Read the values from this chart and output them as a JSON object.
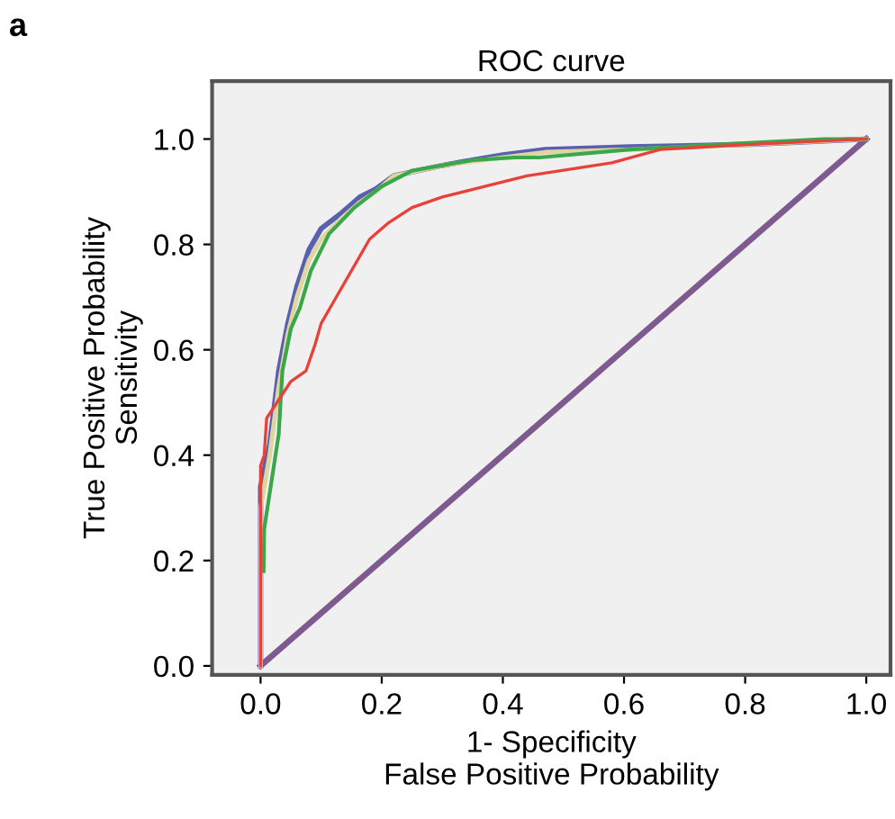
{
  "chart_data": {
    "type": "line",
    "title": "ROC curve",
    "xlabel": "1- Specificity\nFalse Positive Probability",
    "ylabel": "True Positive Probability\nSensitivity",
    "annotations": [
      "a"
    ],
    "xlim": [
      -0.08,
      1.04
    ],
    "ylim": [
      -0.017,
      1.11
    ],
    "xticks": [
      {
        "value": 0,
        "label": "0.0"
      },
      {
        "value": 0.2,
        "label": "0.2"
      },
      {
        "value": 0.4,
        "label": "0.4"
      },
      {
        "value": 0.6,
        "label": "0.6"
      },
      {
        "value": 0.8,
        "label": "0.8"
      },
      {
        "value": 1,
        "label": "1.0"
      }
    ],
    "yticks": [
      {
        "value": 0,
        "label": "0.0"
      },
      {
        "value": 0.2,
        "label": "0.2"
      },
      {
        "value": 0.4,
        "label": "0.4"
      },
      {
        "value": 0.6,
        "label": "0.6"
      },
      {
        "value": 0.8,
        "label": "0.8"
      },
      {
        "value": 1,
        "label": "1.0"
      }
    ],
    "grid": false,
    "marker": "none",
    "line_style": "solid",
    "series": [
      {
        "color": "#7e5a8e",
        "x": [
          0,
          1
        ],
        "values": [
          0,
          1
        ]
      },
      {
        "color": "#5a5fb0",
        "x": [
          0,
          0,
          0.015,
          0.03,
          0.045,
          0.06,
          0.08,
          0.1,
          0.134,
          0.164,
          0.19,
          0.22,
          0.3,
          0.4,
          0.47,
          0.61,
          0.81,
          1
        ],
        "values": [
          0,
          0.34,
          0.42,
          0.56,
          0.65,
          0.72,
          0.79,
          0.83,
          0.86,
          0.89,
          0.905,
          0.93,
          0.95,
          0.97,
          0.98,
          0.985,
          0.99,
          1
        ]
      },
      {
        "color": "#ddd6a0",
        "x": [
          0,
          0,
          0.015,
          0.03,
          0.045,
          0.06,
          0.08,
          0.1,
          0.134,
          0.164,
          0.19,
          0.22,
          0.3,
          0.4,
          0.47,
          0.61,
          0.81,
          1
        ],
        "values": [
          0,
          0.3,
          0.4,
          0.53,
          0.63,
          0.7,
          0.77,
          0.81,
          0.85,
          0.88,
          0.9,
          0.93,
          0.95,
          0.965,
          0.975,
          0.98,
          0.99,
          1
        ]
      },
      {
        "color": "#3aa84a",
        "x": [
          0.005,
          0.006,
          0.03,
          0.036,
          0.05,
          0.065,
          0.083,
          0.113,
          0.155,
          0.2,
          0.25,
          0.35,
          0.42,
          0.46,
          0.61,
          0.76,
          0.93,
          1
        ],
        "values": [
          0.18,
          0.26,
          0.44,
          0.56,
          0.64,
          0.68,
          0.75,
          0.82,
          0.87,
          0.91,
          0.94,
          0.96,
          0.965,
          0.965,
          0.98,
          0.99,
          1,
          1
        ]
      },
      {
        "color": "#e8413a",
        "x": [
          0,
          0,
          0.006,
          0.01,
          0.05,
          0.075,
          0.09,
          0.1,
          0.13,
          0.15,
          0.18,
          0.21,
          0.25,
          0.3,
          0.37,
          0.44,
          0.58,
          0.66,
          0.81,
          1
        ],
        "values": [
          0,
          0.38,
          0.4,
          0.47,
          0.54,
          0.56,
          0.61,
          0.65,
          0.71,
          0.75,
          0.81,
          0.84,
          0.87,
          0.89,
          0.91,
          0.93,
          0.955,
          0.98,
          0.99,
          1
        ]
      }
    ]
  }
}
